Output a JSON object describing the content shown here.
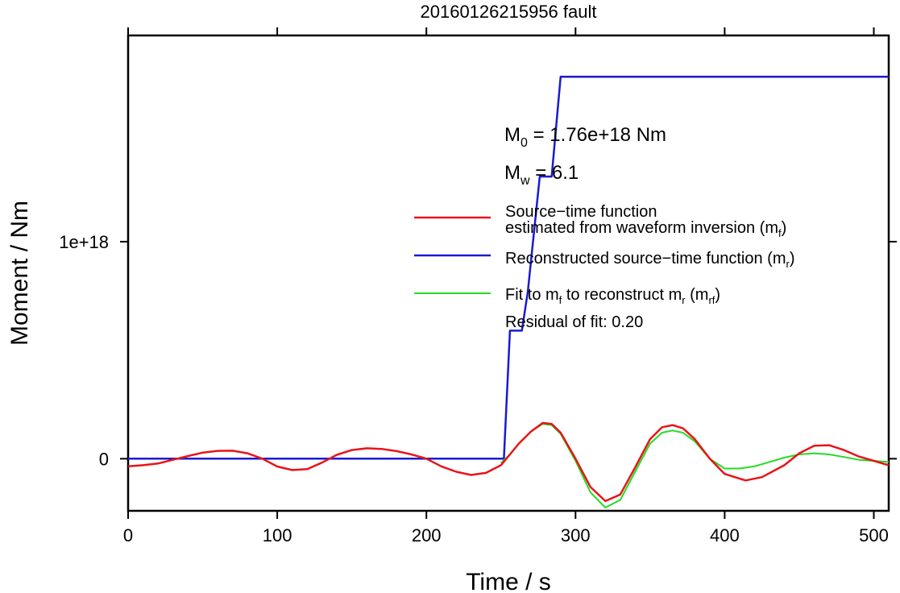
{
  "chart_data": {
    "type": "line",
    "title": "20160126215956 fault",
    "xlabel": "Time / s",
    "ylabel": "Moment / Nm",
    "xlim": [
      0,
      510
    ],
    "ylim": [
      -2.4e+17,
      1.95e+18
    ],
    "xticks": [
      {
        "value": 0,
        "label": "0"
      },
      {
        "value": 100,
        "label": "100"
      },
      {
        "value": 200,
        "label": "200"
      },
      {
        "value": 300,
        "label": "300"
      },
      {
        "value": 400,
        "label": "400"
      },
      {
        "value": 500,
        "label": "500"
      }
    ],
    "yticks": [
      {
        "value": 0,
        "label": "0"
      },
      {
        "value": 1e+18,
        "label": "1e+18"
      }
    ],
    "grid": false,
    "legend_position": "right",
    "annotations": {
      "m0_main": "M",
      "m0_sub": "0",
      "m0_rest": " = 1.76e+18 Nm",
      "mw_main": "M",
      "mw_sub": "w",
      "mw_rest": " = 6.1",
      "residual": "Residual of fit: 0.20"
    },
    "legend": {
      "red_line1": "Source−time function",
      "red_line2_main": "estimated from waveform inversion (m",
      "red_line2_sub": "f",
      "red_line2_end": ")",
      "blue_main": "Reconstructed source−time function (m",
      "blue_sub": "r",
      "blue_end": ")",
      "green_a": "Fit to m",
      "green_a_sub": "f",
      "green_b": " to reconstruct m",
      "green_b_sub": "r",
      "green_c": " (m",
      "green_c_sub": "rf",
      "green_end": ")"
    },
    "series": [
      {
        "key": "mf",
        "color": "#e8141a",
        "x": [
          0,
          10,
          20,
          30,
          40,
          50,
          60,
          70,
          80,
          90,
          100,
          110,
          120,
          130,
          140,
          150,
          160,
          170,
          180,
          190,
          200,
          210,
          220,
          230,
          240,
          250,
          256,
          262,
          270,
          278,
          284,
          290,
          300,
          310,
          320,
          330,
          340,
          350,
          358,
          365,
          372,
          380,
          390,
          400,
          414,
          425,
          440,
          450,
          460,
          470,
          480,
          490,
          500,
          510
        ],
        "y": [
          -3.5e+16,
          -3e+16,
          -2.2e+16,
          -5000000000000000.0,
          1.2e+16,
          2.8e+16,
          3.6e+16,
          3.7e+16,
          2.5e+16,
          0.0,
          -3.6e+16,
          -5.2e+16,
          -4.8e+16,
          -1.8e+16,
          1.8e+16,
          4e+16,
          4.8e+16,
          4.5e+16,
          3.5e+16,
          2e+16,
          0.0,
          -3.5e+16,
          -6e+16,
          -7.5e+16,
          -6.5e+16,
          -3e+16,
          2e+16,
          7e+16,
          1.25e+17,
          1.65e+17,
          1.6e+17,
          1.2e+17,
          0.0,
          -1.3e+17,
          -1.95e+17,
          -1.65e+17,
          -4e+16,
          9e+16,
          1.45e+17,
          1.55e+17,
          1.4e+17,
          9e+16,
          0.0,
          -7e+16,
          -1e+17,
          -8.5e+16,
          -3e+16,
          2.5e+16,
          6e+16,
          6.2e+16,
          4e+16,
          1e+16,
          -1e+16,
          -3e+16
        ]
      },
      {
        "key": "mr",
        "color": "#1a1ad2",
        "x": [
          0,
          252,
          256,
          264,
          268,
          276,
          284,
          290,
          510
        ],
        "y": [
          0,
          0,
          5.9e+17,
          5.9e+17,
          7.7e+17,
          1.3e+18,
          1.3e+18,
          1.76e+18,
          1.76e+18
        ]
      },
      {
        "key": "mrf",
        "color": "#22dd22",
        "x": [
          250,
          256,
          262,
          270,
          278,
          284,
          290,
          300,
          310,
          320,
          330,
          340,
          350,
          358,
          365,
          372,
          380,
          390,
          400,
          410,
          420,
          430,
          440,
          450,
          460,
          470,
          480,
          490,
          500,
          510
        ],
        "y": [
          -2e+16,
          2e+16,
          7e+16,
          1.25e+17,
          1.6e+17,
          1.55e+17,
          1.15e+17,
          -1e+16,
          -1.55e+17,
          -2.25e+17,
          -1.9e+17,
          -6e+16,
          7e+16,
          1.2e+17,
          1.3e+17,
          1.2e+17,
          8e+16,
          0.0,
          -4.5e+16,
          -4.5e+16,
          -3.5e+16,
          -1.5e+16,
          5000000000000000.0,
          2e+16,
          2.5e+16,
          2e+16,
          8000000000000000.0,
          -5000000000000000.0,
          -1e+16,
          -1.5e+16
        ]
      }
    ]
  }
}
